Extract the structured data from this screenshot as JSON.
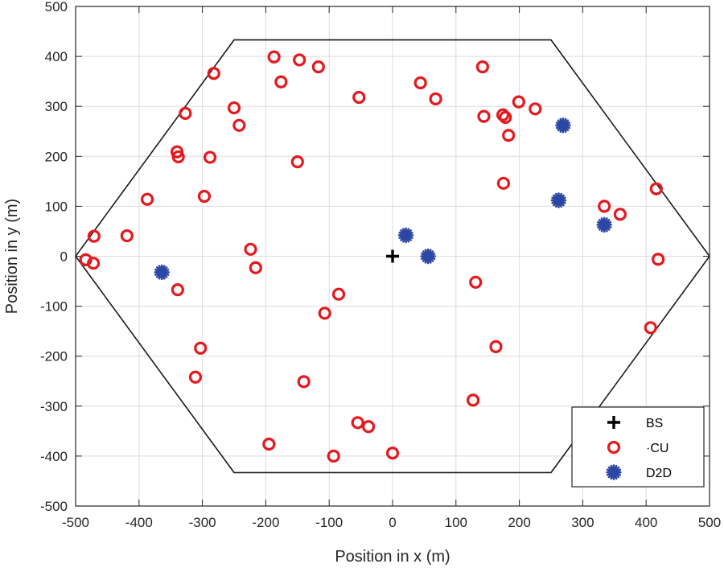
{
  "chart_data": {
    "type": "scatter",
    "title": "",
    "xlabel": "Position in x (m)",
    "ylabel": "Position in y (m)",
    "xlim": [
      -500,
      500
    ],
    "ylim": [
      -500,
      500
    ],
    "xticks": [
      -500,
      -400,
      -300,
      -200,
      -100,
      0,
      100,
      200,
      300,
      400,
      500
    ],
    "yticks": [
      -500,
      -400,
      -300,
      -200,
      -100,
      0,
      100,
      200,
      300,
      400,
      500
    ],
    "grid": true,
    "legend_position": "bottom-right",
    "cell_boundary": [
      [
        500,
        0
      ],
      [
        250,
        433
      ],
      [
        -250,
        433
      ],
      [
        -500,
        0
      ],
      [
        -250,
        -433
      ],
      [
        250,
        -433
      ]
    ],
    "series": [
      {
        "name": "BS",
        "marker": "plus",
        "color": "#000000",
        "points": [
          [
            0,
            0
          ]
        ]
      },
      {
        "name": "·CU",
        "marker": "circle",
        "color": "#e5191e",
        "points": [
          [
            -187,
            399
          ],
          [
            -147,
            393
          ],
          [
            -117,
            379
          ],
          [
            -282,
            366
          ],
          [
            -176,
            349
          ],
          [
            -53,
            318
          ],
          [
            -250,
            297
          ],
          [
            -327,
            286
          ],
          [
            -242,
            262
          ],
          [
            -150,
            189
          ],
          [
            -340,
            209
          ],
          [
            -338,
            199
          ],
          [
            -288,
            198
          ],
          [
            -387,
            114
          ],
          [
            -297,
            120
          ],
          [
            -471,
            40
          ],
          [
            -419,
            41
          ],
          [
            -224,
            14
          ],
          [
            -216,
            -23
          ],
          [
            -484,
            -7
          ],
          [
            -472,
            -14
          ],
          [
            -339,
            -67
          ],
          [
            -85,
            -76
          ],
          [
            -107,
            -114
          ],
          [
            -303,
            -184
          ],
          [
            -311,
            -242
          ],
          [
            -140,
            -251
          ],
          [
            -55,
            -333
          ],
          [
            -38,
            -341
          ],
          [
            -195,
            -376
          ],
          [
            -93,
            -400
          ],
          [
            0,
            -394
          ],
          [
            44,
            347
          ],
          [
            68,
            315
          ],
          [
            142,
            379
          ],
          [
            144,
            280
          ],
          [
            174,
            283
          ],
          [
            178,
            278
          ],
          [
            199,
            309
          ],
          [
            225,
            295
          ],
          [
            183,
            242
          ],
          [
            175,
            146
          ],
          [
            131,
            -52
          ],
          [
            163,
            -181
          ],
          [
            127,
            -288
          ],
          [
            334,
            100
          ],
          [
            359,
            84
          ],
          [
            416,
            135
          ],
          [
            419,
            -6
          ],
          [
            407,
            -143
          ]
        ]
      },
      {
        "name": "D2D",
        "marker": "asterisk",
        "color": "#2b46a3",
        "points": [
          [
            -364,
            -32
          ],
          [
            21,
            42
          ],
          [
            56,
            0
          ],
          [
            269,
            262
          ],
          [
            262,
            112
          ],
          [
            334,
            63
          ]
        ]
      }
    ]
  }
}
